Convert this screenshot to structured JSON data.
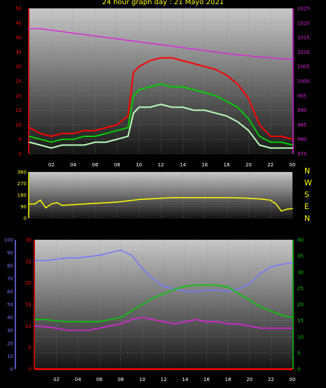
{
  "title": "24 hour graph day : 21 Mayo 2021",
  "x_ticks": [
    "02",
    "04",
    "06",
    "08",
    "10",
    "12",
    "14",
    "16",
    "18",
    "20",
    "22",
    "00"
  ],
  "compass": [
    "N",
    "W",
    "S",
    "E",
    "N"
  ],
  "colors": {
    "wind_gust": "#ff0000",
    "wind_avg": "#00cc00",
    "wind_min": "#bbffbb",
    "pressure": "#dd22dd",
    "direction": "#ffff00",
    "humidity": "#7777ff",
    "temperature": "#00cc00",
    "dewpoint": "#dd22dd",
    "rain": "#ff0000"
  },
  "chart_data": [
    {
      "type": "line",
      "panel": "wind_pressure",
      "x_hours": [
        0,
        1,
        2,
        3,
        4,
        5,
        6,
        7,
        8,
        9,
        9.5,
        10,
        11,
        12,
        13,
        14,
        15,
        16,
        17,
        18,
        19,
        20,
        21,
        22,
        23,
        24
      ],
      "y_left_ticks": [
        "50",
        "45",
        "40",
        "35",
        "30",
        "25",
        "20",
        "15",
        "10",
        "5",
        "0"
      ],
      "y_right_ticks": [
        "1025",
        "1020",
        "1015",
        "1010",
        "1005",
        "1000",
        "995",
        "990",
        "985",
        "980",
        "975"
      ],
      "ylim_left": [
        0,
        50
      ],
      "ylim_right": [
        975,
        1025
      ],
      "series": [
        {
          "key": "wind_gust",
          "values": [
            9,
            7,
            6,
            7,
            7,
            8,
            8,
            9,
            10,
            13,
            28,
            30,
            32,
            33,
            33,
            32,
            31,
            30,
            29,
            27,
            24,
            19,
            10,
            6,
            6,
            5
          ]
        },
        {
          "key": "wind_avg",
          "values": [
            6,
            5,
            4,
            5,
            5,
            6,
            6,
            7,
            8,
            9,
            20,
            22,
            23,
            24,
            23,
            23,
            22,
            21,
            20,
            18,
            16,
            12,
            6,
            4,
            4,
            3
          ]
        },
        {
          "key": "wind_min",
          "values": [
            4,
            3,
            2,
            3,
            3,
            3,
            4,
            4,
            5,
            6,
            14,
            16,
            16,
            17,
            16,
            16,
            15,
            15,
            14,
            13,
            11,
            8,
            3,
            2,
            2,
            2
          ]
        },
        {
          "key": "pressure",
          "axis": "right",
          "values": [
            1018,
            1018,
            1017.5,
            1017,
            1016.5,
            1016,
            1015.5,
            1015,
            1014.5,
            1014,
            1013.8,
            1013.5,
            1013,
            1012.5,
            1012,
            1011.5,
            1011,
            1010.5,
            1010,
            1009.5,
            1009,
            1008.7,
            1008.3,
            1008,
            1007.7,
            1007.5
          ]
        }
      ]
    },
    {
      "type": "line",
      "panel": "wind_direction",
      "y_ticks": [
        "360",
        "270",
        "180",
        "90",
        "0"
      ],
      "ylim": [
        0,
        360
      ],
      "x_hours": [
        0,
        0.5,
        1,
        1.5,
        2,
        2.5,
        3,
        4,
        5,
        6,
        7,
        8,
        9,
        10,
        11,
        12,
        13,
        14,
        15,
        16,
        17,
        18,
        19,
        20,
        21,
        22,
        22.5,
        23,
        23.5,
        24
      ],
      "series": [
        {
          "key": "direction",
          "values": [
            110,
            110,
            140,
            80,
            110,
            120,
            100,
            105,
            110,
            115,
            120,
            125,
            135,
            145,
            150,
            155,
            160,
            160,
            160,
            160,
            160,
            160,
            158,
            155,
            150,
            140,
            110,
            55,
            70,
            75
          ]
        }
      ]
    },
    {
      "type": "line",
      "panel": "temperature_humidity",
      "x_hours": [
        0,
        1,
        2,
        3,
        4,
        5,
        6,
        7,
        8,
        9,
        10,
        11,
        12,
        13,
        14,
        15,
        16,
        17,
        18,
        19,
        20,
        21,
        22,
        23,
        24
      ],
      "y_left1_ticks": [
        "100",
        "90",
        "80",
        "70",
        "60",
        "50",
        "40",
        "30",
        "20",
        "10",
        "0"
      ],
      "y_left2_ticks": [
        "30",
        "25",
        "20",
        "15",
        "10",
        "5",
        "0"
      ],
      "y_right_ticks": [
        "40",
        "35",
        "30",
        "25",
        "20",
        "15",
        "10",
        "5",
        "0"
      ],
      "ylim_humidity": [
        0,
        100
      ],
      "ylim_temp": [
        0,
        30
      ],
      "ylim_right": [
        0,
        40
      ],
      "series": [
        {
          "key": "humidity",
          "axis": "left1",
          "values": [
            84,
            84,
            85,
            86,
            86,
            87,
            88,
            90,
            92,
            88,
            78,
            70,
            64,
            62,
            60,
            60,
            61,
            61,
            60,
            62,
            66,
            74,
            79,
            81,
            82
          ]
        },
        {
          "key": "temperature",
          "axis": "left2",
          "values": [
            11.5,
            11.5,
            11.2,
            11,
            11,
            11,
            11,
            11.5,
            12,
            13.5,
            15,
            16.5,
            17.5,
            18.5,
            19.2,
            19.5,
            19.5,
            19.5,
            19,
            17.5,
            16,
            14.5,
            13.5,
            12.5,
            12
          ]
        },
        {
          "key": "dewpoint",
          "axis": "left2",
          "values": [
            10,
            9.8,
            9.5,
            9,
            9,
            9,
            9.5,
            10,
            10.5,
            11.5,
            12,
            11.5,
            11,
            10.5,
            11,
            11.5,
            11,
            11,
            10.5,
            10.5,
            10,
            9.5,
            9.5,
            9.5,
            9.5
          ]
        },
        {
          "key": "rain",
          "axis": "right",
          "values": [
            0,
            0,
            0,
            0,
            0,
            0,
            0,
            0,
            0,
            0,
            0,
            0,
            0,
            0,
            0,
            0,
            0,
            0,
            0,
            0,
            0,
            0,
            0,
            0,
            0
          ]
        }
      ]
    }
  ]
}
